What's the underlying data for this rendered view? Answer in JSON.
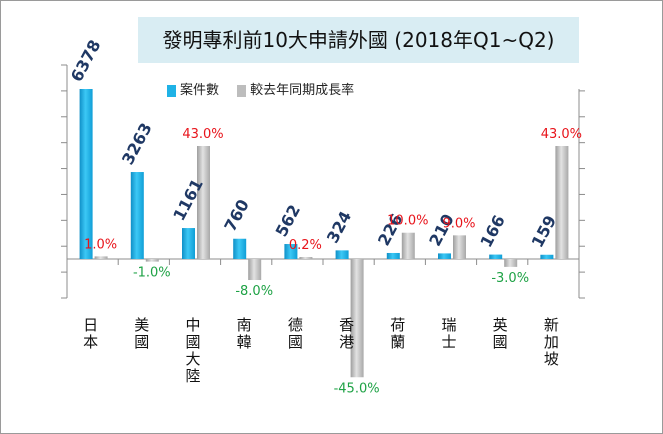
{
  "chart_data": {
    "type": "bar",
    "title": "發明專利前10大申請外國 (2018年Q1~Q2)",
    "categories": [
      "日本",
      "美國",
      "中國大陸",
      "南韓",
      "德國",
      "香港",
      "荷蘭",
      "瑞士",
      "英國",
      "新加坡"
    ],
    "series": [
      {
        "name": "案件數",
        "values": [
          6378,
          3263,
          1161,
          760,
          562,
          324,
          226,
          210,
          166,
          159
        ],
        "labels": [
          "6378",
          "3263",
          "1161",
          "760",
          "562",
          "324",
          "226",
          "210",
          "166",
          "159"
        ],
        "color": "#1fb2e6"
      },
      {
        "name": "較去年同期成長率",
        "values": [
          1.0,
          -1.0,
          43.0,
          -8.0,
          0.2,
          -45.0,
          10.0,
          9.0,
          -3.0,
          43.0
        ],
        "labels": [
          "1.0%",
          "-1.0%",
          "43.0%",
          "-8.0%",
          "0.2%",
          "-45.0%",
          "10.0%",
          "9.0%",
          "-3.0%",
          "43.0%"
        ],
        "color": "#bdbdbd"
      }
    ],
    "positive_label_color": "#e8141b",
    "negative_label_color": "#1ea245",
    "count_label_color": "#1f3864",
    "legend_position": "top",
    "grid": false
  }
}
